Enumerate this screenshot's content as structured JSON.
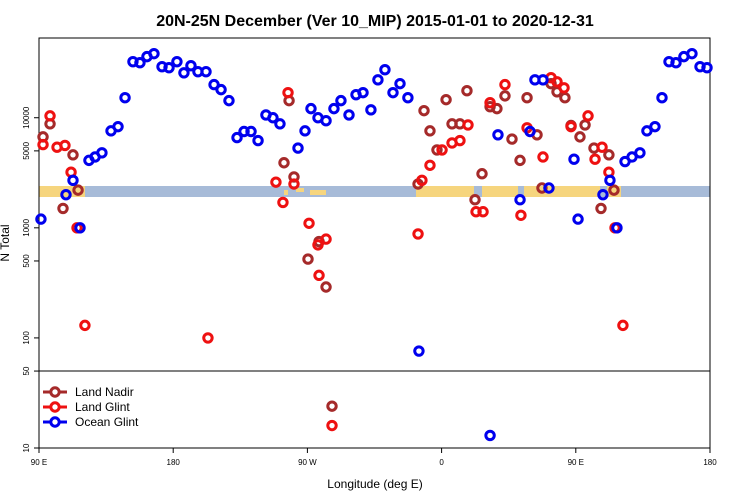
{
  "chart_data": {
    "type": "scatter",
    "title": "20N-25N December (Ver 10_MIP)   2015-01-01 to 2020-12-31",
    "x_label": "Longitude (deg E)",
    "y_label": "N Total",
    "xlim": [
      90,
      540
    ],
    "xticks": [
      {
        "value": 90,
        "label": "90 E"
      },
      180,
      {
        "value": 270,
        "label": "90 W"
      },
      {
        "value": 360,
        "label": "0"
      },
      {
        "value": 450,
        "label": "90 E"
      },
      {
        "value": 540,
        "label": "180"
      }
    ],
    "ylim": [
      10,
      53000
    ],
    "yticks": [
      10,
      50,
      100,
      500,
      1000,
      5000,
      10000
    ],
    "log_y": true,
    "hline": 50,
    "legend": "bottom left",
    "series": [
      {
        "name": "Land Nadir",
        "color": "#a52a2a",
        "x": [
          92.7,
          97.4,
          106.1,
          112.8,
          116.2,
          254.3,
          257.7,
          261,
          270.4,
          277.8,
          282.5,
          286.5,
          344.2,
          348.2,
          352.2,
          356.9,
          363,
          367,
          372.3,
          377,
          382.4,
          387.1,
          392.5,
          397.1,
          402.5,
          407.2,
          412.6,
          417.3,
          424,
          427.3,
          433.4,
          437.4,
          442.7,
          446.8,
          452.8,
          456.2,
          462.2,
          466.9,
          472.2,
          475.6
        ],
        "values": [
          6700,
          8800,
          1500,
          4600,
          2200,
          3900,
          14300,
          2900,
          520,
          750,
          290,
          24,
          2500,
          11600,
          7600,
          5100,
          14600,
          8800,
          8800,
          17600,
          1800,
          3100,
          12600,
          12100,
          15800,
          6400,
          4100,
          15200,
          7000,
          2300,
          20400,
          17200,
          15200,
          8500,
          6700,
          8600,
          5300,
          1500,
          4600,
          2200
        ]
      },
      {
        "name": "Land Glint",
        "color": "#ee1111",
        "x": [
          92.7,
          97.4,
          102.1,
          107.4,
          111.5,
          115.5,
          120.8,
          203.3,
          248.9,
          253.6,
          257,
          261,
          271.1,
          277.1,
          277.8,
          282.5,
          286.5,
          344.2,
          346.8,
          352.2,
          360.3,
          367,
          372.3,
          377.7,
          383.1,
          387.8,
          392.5,
          402.5,
          413.2,
          417.3,
          428,
          433.4,
          437.4,
          442.1,
          446.8,
          458.2,
          462.9,
          467.6,
          472.2,
          476.3,
          481.6
        ],
        "values": [
          5700,
          10400,
          5400,
          5600,
          3200,
          1000,
          130,
          100,
          2600,
          1700,
          16900,
          2500,
          1100,
          700,
          370,
          790,
          16,
          880,
          2700,
          3700,
          5100,
          5900,
          6200,
          8600,
          1400,
          1400,
          13700,
          20000,
          1300,
          8100,
          4400,
          23100,
          21200,
          18700,
          8300,
          10400,
          4200,
          5400,
          3200,
          1000,
          130
        ]
      },
      {
        "name": "Ocean Glint",
        "color": "#0000ee",
        "x": [
          91.3,
          108.1,
          112.8,
          117.5,
          123.5,
          127.6,
          132.2,
          138.3,
          143,
          147.7,
          153,
          157.7,
          162.4,
          167.1,
          172.5,
          177.2,
          182.5,
          187.2,
          191.9,
          196.6,
          202,
          207.4,
          212.1,
          217.4,
          222.8,
          227.5,
          232.2,
          236.9,
          242.2,
          246.9,
          251.6,
          263.7,
          268.4,
          272.4,
          277.1,
          282.5,
          287.8,
          292.5,
          297.9,
          302.6,
          307.3,
          312.6,
          317.3,
          322,
          327.4,
          332.1,
          337.4,
          344.8,
          392.5,
          397.8,
          412.6,
          419.3,
          422.6,
          428,
          432,
          448.8,
          451.5,
          468.2,
          472.9,
          477.6,
          483,
          487.7,
          493,
          497.7,
          503.1,
          507.8,
          512.5,
          517.2,
          522.5,
          527.9,
          533.3,
          538
        ],
        "values": [
          1200,
          2000,
          2700,
          1000,
          4100,
          4400,
          4800,
          7600,
          8300,
          15200,
          32300,
          31600,
          35900,
          38200,
          29100,
          28500,
          32300,
          25600,
          29700,
          26200,
          26200,
          20000,
          18000,
          14300,
          6600,
          7500,
          7500,
          6200,
          10600,
          10000,
          8800,
          5300,
          7600,
          12100,
          10000,
          9400,
          12100,
          14300,
          10600,
          16200,
          16900,
          11800,
          22100,
          27300,
          16900,
          20400,
          15200,
          76,
          13,
          7000,
          1800,
          7500,
          22100,
          22100,
          2300,
          4200,
          1200,
          2000,
          2700,
          1000,
          4000,
          4400,
          4800,
          7600,
          8300,
          15200,
          32300,
          31600,
          35900,
          38200,
          29100,
          28500
        ]
      }
    ]
  }
}
